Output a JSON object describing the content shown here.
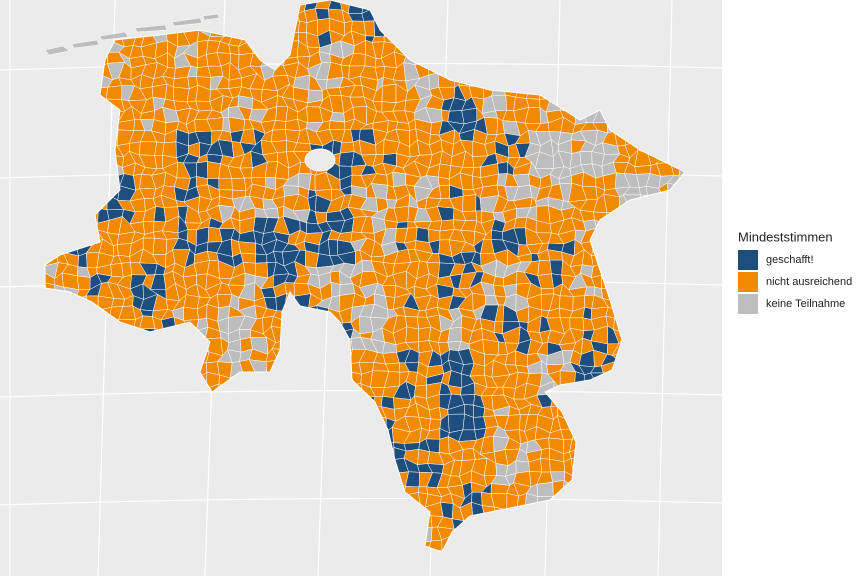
{
  "legend": {
    "title": "Mindeststimmen",
    "entries": [
      {
        "label": "geschafft!",
        "color": "#1d4e7e"
      },
      {
        "label": "nicht ausreichend",
        "color": "#f28a00"
      },
      {
        "label": "keine Teilnahme",
        "color": "#bdbdbd"
      }
    ]
  }
}
